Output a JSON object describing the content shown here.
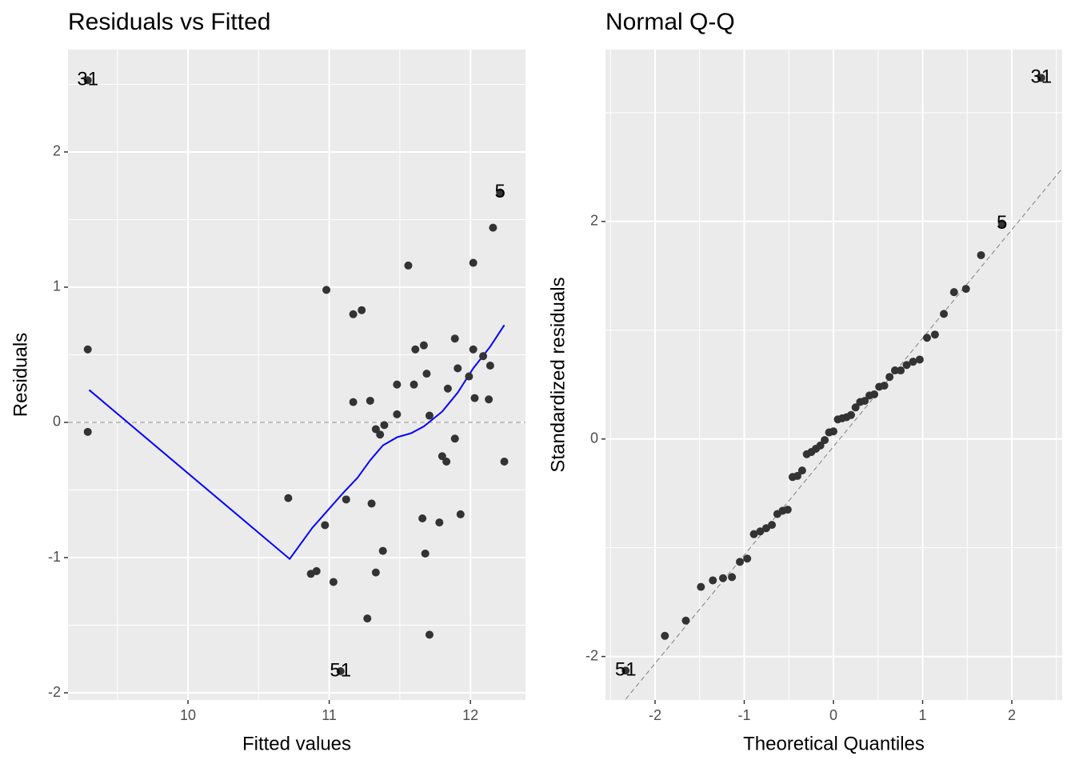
{
  "chart_data": [
    {
      "type": "scatter",
      "title": "Residuals vs Fitted",
      "x_label": "Fitted values",
      "y_label": "Residuals",
      "xlim": [
        9.15,
        12.39
      ],
      "ylim": [
        -2.053,
        2.757
      ],
      "xticks": [
        10,
        11,
        12
      ],
      "yticks": [
        -2,
        -1,
        0,
        1,
        2
      ],
      "grid": true,
      "color": "#333333",
      "x": [
        9.29,
        9.29,
        9.29,
        10.98,
        10.71,
        10.97,
        10.87,
        10.91,
        11.03,
        11.08,
        11.12,
        11.17,
        11.23,
        11.17,
        11.29,
        11.3,
        11.27,
        11.33,
        11.36,
        11.39,
        11.33,
        11.38,
        11.48,
        11.48,
        11.56,
        11.6,
        11.61,
        11.67,
        11.66,
        11.69,
        11.68,
        11.71,
        11.71,
        11.78,
        11.8,
        11.83,
        11.84,
        11.89,
        11.89,
        11.91,
        11.93,
        11.99,
        12.02,
        12.02,
        12.03,
        12.09,
        12.13,
        12.14,
        12.16,
        12.21,
        12.24
      ],
      "values": [
        2.53,
        0.54,
        -0.07,
        0.98,
        -0.56,
        -0.76,
        -1.12,
        -1.1,
        -1.18,
        -1.84,
        -0.57,
        0.8,
        0.83,
        0.15,
        0.16,
        -0.6,
        -1.45,
        -0.05,
        -0.09,
        -0.02,
        -1.11,
        -0.95,
        0.28,
        0.06,
        1.16,
        0.28,
        0.54,
        0.57,
        -0.71,
        0.36,
        -0.97,
        0.05,
        -1.57,
        -0.74,
        -0.25,
        -0.29,
        0.25,
        0.62,
        -0.12,
        0.4,
        -0.68,
        0.34,
        1.18,
        0.54,
        0.18,
        0.49,
        0.17,
        0.42,
        1.44,
        1.7,
        -0.29
      ],
      "hline": 0,
      "smooth": {
        "color": "#0000ff",
        "x": [
          9.3,
          10.72,
          10.88,
          11.1,
          11.2,
          11.29,
          11.38,
          11.48,
          11.58,
          11.67,
          11.8,
          11.91,
          12.02,
          12.14,
          12.24
        ],
        "values": [
          0.24,
          -1.01,
          -0.78,
          -0.52,
          -0.41,
          -0.28,
          -0.17,
          -0.11,
          -0.08,
          -0.03,
          0.08,
          0.22,
          0.4,
          0.56,
          0.72
        ]
      },
      "annotations": [
        {
          "label": "31",
          "x": 9.29,
          "y": 2.53
        },
        {
          "label": "51",
          "x": 11.08,
          "y": -1.84
        },
        {
          "label": "5",
          "x": 12.21,
          "y": 1.7
        }
      ]
    },
    {
      "type": "scatter",
      "title": "Normal Q-Q",
      "x_label": "Theoretical Quantiles",
      "y_label": "Standardized residuals",
      "xlim": [
        -2.556,
        2.565
      ],
      "ylim": [
        -2.4,
        3.58
      ],
      "xticks": [
        -2,
        -1,
        0,
        1,
        2
      ],
      "yticks": [
        -2,
        0,
        2
      ],
      "grid": true,
      "color": "#333333",
      "x": [
        -2.33,
        -1.89,
        -1.655,
        -1.486,
        -1.352,
        -1.238,
        -1.138,
        -1.049,
        -0.967,
        -0.892,
        -0.821,
        -0.754,
        -0.69,
        -0.629,
        -0.57,
        -0.513,
        -0.458,
        -0.404,
        -0.351,
        -0.299,
        -0.248,
        -0.197,
        -0.147,
        -0.098,
        -0.049,
        0,
        0.049,
        0.098,
        0.147,
        0.197,
        0.248,
        0.299,
        0.351,
        0.404,
        0.458,
        0.513,
        0.57,
        0.629,
        0.69,
        0.754,
        0.821,
        0.892,
        0.967,
        1.049,
        1.138,
        1.238,
        1.352,
        1.486,
        1.655,
        1.89,
        2.33
      ],
      "values": [
        -2.13,
        -1.81,
        -1.67,
        -1.36,
        -1.3,
        -1.28,
        -1.27,
        -1.13,
        -1.1,
        -0.875,
        -0.85,
        -0.82,
        -0.79,
        -0.69,
        -0.66,
        -0.65,
        -0.35,
        -0.34,
        -0.29,
        -0.14,
        -0.12,
        -0.09,
        -0.06,
        -0.01,
        0.06,
        0.07,
        0.18,
        0.19,
        0.2,
        0.22,
        0.29,
        0.34,
        0.35,
        0.4,
        0.41,
        0.48,
        0.49,
        0.57,
        0.63,
        0.63,
        0.68,
        0.71,
        0.73,
        0.93,
        0.96,
        1.15,
        1.35,
        1.38,
        1.69,
        1.98,
        3.32
      ],
      "refline": {
        "slope": 0.997,
        "intercept": -0.07
      },
      "annotations": [
        {
          "label": "51",
          "x": -2.33,
          "y": -2.13
        },
        {
          "label": "5",
          "x": 1.89,
          "y": 1.98
        },
        {
          "label": "31",
          "x": 2.33,
          "y": 3.32
        }
      ]
    }
  ]
}
